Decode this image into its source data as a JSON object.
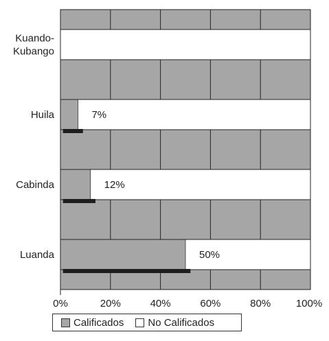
{
  "chart_data": {
    "type": "bar",
    "orientation": "horizontal",
    "categories": [
      "Kuando-\nKubango",
      "Huila",
      "Cabinda",
      "Luanda"
    ],
    "category_lines": [
      [
        "Kuando-",
        "Kubango"
      ],
      [
        "Huila"
      ],
      [
        "Cabinda"
      ],
      [
        "Luanda"
      ]
    ],
    "series": [
      {
        "name": "Calificados",
        "values": [
          0,
          7,
          12,
          50
        ],
        "color": "#a6a6a6"
      },
      {
        "name": "No Calificados",
        "values": [
          100,
          93,
          88,
          50
        ],
        "color": "#ffffff"
      }
    ],
    "secondary_bars": [
      0,
      9,
      14,
      52
    ],
    "secondary_bar_color": "#1e1e1e",
    "data_labels": [
      "",
      "7%",
      "12%",
      "50%"
    ],
    "x_ticks": [
      "0%",
      "20%",
      "40%",
      "60%",
      "80%",
      "100%"
    ],
    "xlim": [
      0,
      100
    ],
    "background_color": "#a6a6a6",
    "grid": true,
    "legend_position": "bottom"
  },
  "legend": {
    "calificados": "Calificados",
    "no_calificados": "No Calificados"
  }
}
